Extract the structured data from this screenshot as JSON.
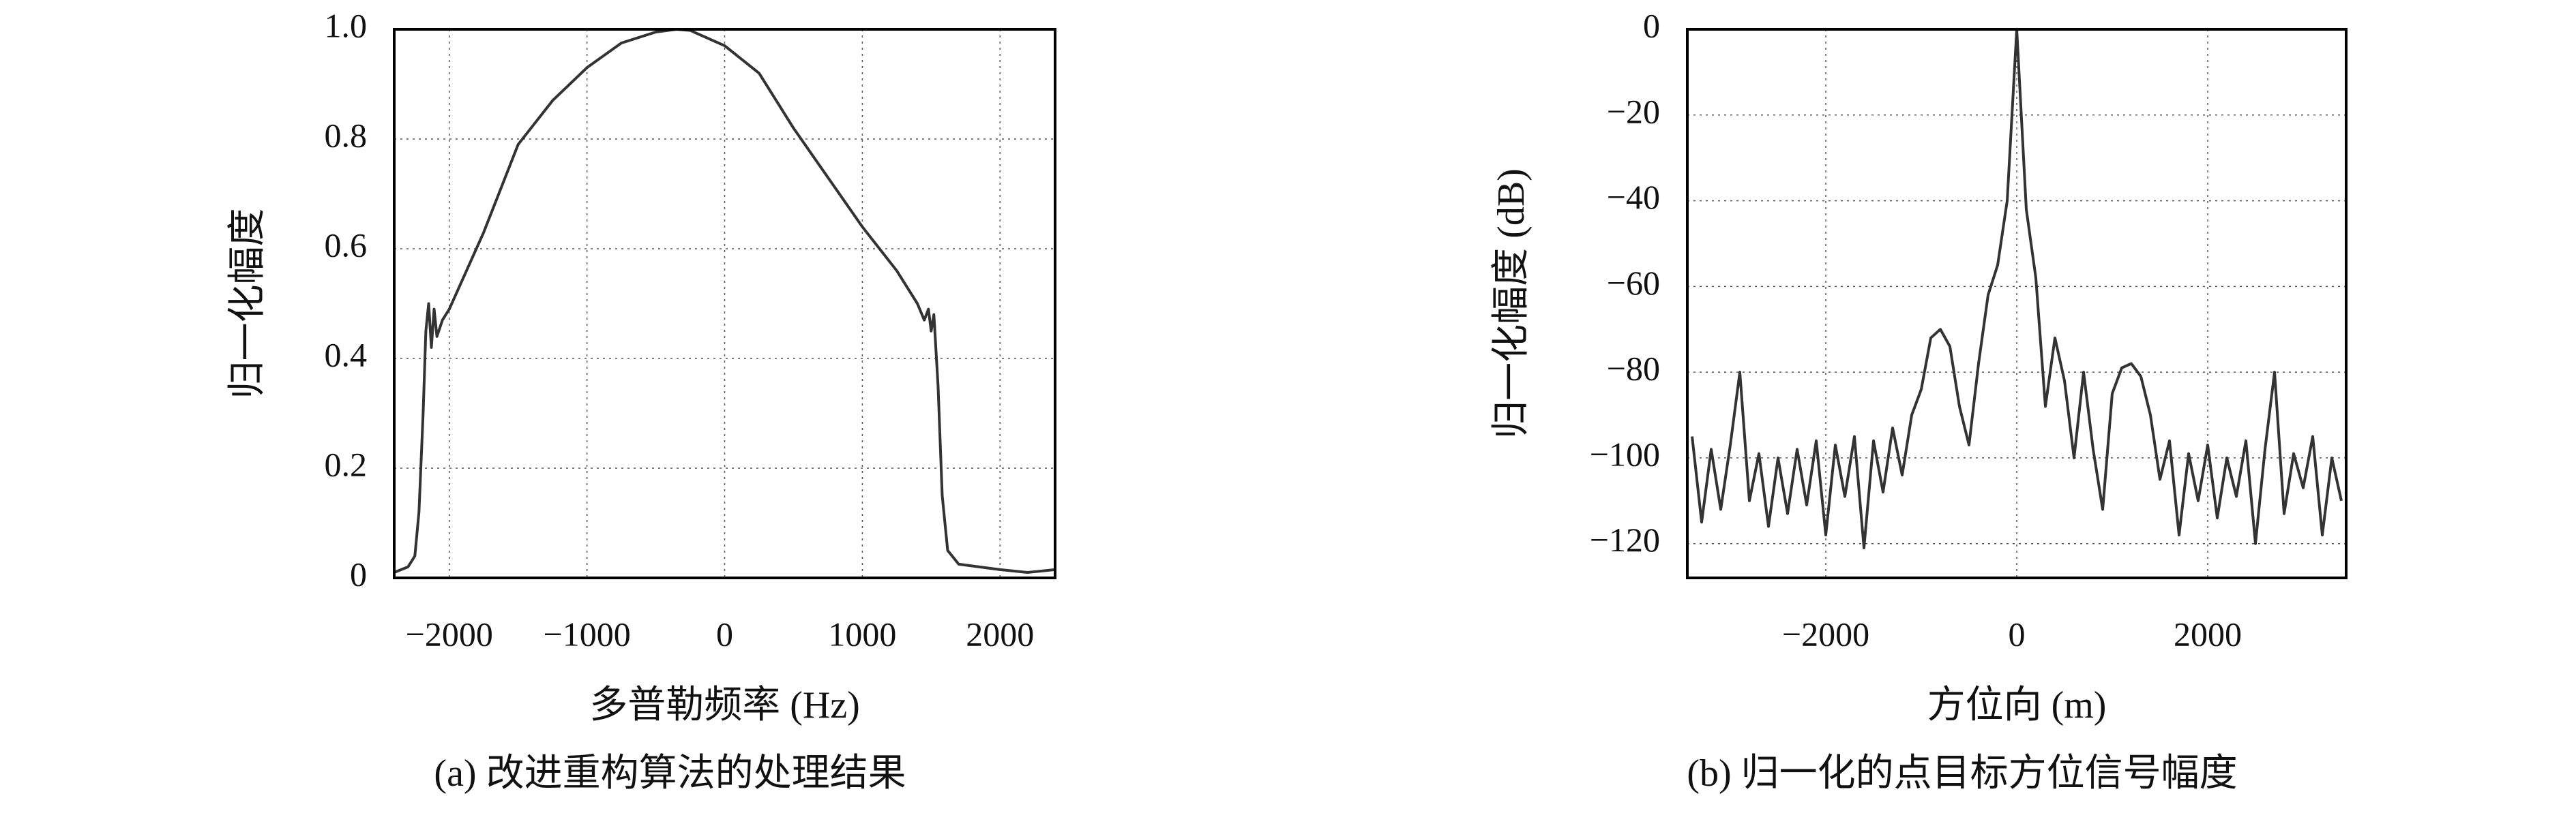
{
  "chart_data": [
    {
      "type": "line",
      "caption": "(a) 改进重构算法的处理结果",
      "x_label": "多普勒频率 (Hz)",
      "y_label": "归一化幅度",
      "x": [
        -2400,
        -2300,
        -2250,
        -2220,
        -2190,
        -2170,
        -2150,
        -2130,
        -2110,
        -2090,
        -2050,
        -2000,
        -1750,
        -1500,
        -1250,
        -1000,
        -750,
        -500,
        -350,
        -250,
        0,
        250,
        500,
        750,
        1000,
        1250,
        1400,
        1450,
        1480,
        1500,
        1520,
        1550,
        1580,
        1620,
        1700,
        2000,
        2200,
        2400
      ],
      "series": [
        {
          "color": "#333333",
          "values": [
            0.01,
            0.02,
            0.04,
            0.12,
            0.3,
            0.45,
            0.5,
            0.42,
            0.49,
            0.44,
            0.47,
            0.49,
            0.63,
            0.79,
            0.87,
            0.93,
            0.975,
            0.995,
            1.0,
            0.998,
            0.97,
            0.92,
            0.82,
            0.73,
            0.64,
            0.56,
            0.5,
            0.47,
            0.49,
            0.45,
            0.48,
            0.35,
            0.15,
            0.05,
            0.025,
            0.015,
            0.01,
            0.015
          ]
        }
      ],
      "xlim": [
        -2400,
        2400
      ],
      "ylim": [
        0,
        1
      ],
      "xticks": [
        {
          "value": -2000,
          "label": "−2000"
        },
        {
          "value": -1000,
          "label": "−1000"
        },
        0,
        1000,
        2000
      ],
      "yticks": [
        0,
        0.2,
        0.4,
        0.6,
        0.8,
        {
          "value": 1,
          "label": "1.0"
        }
      ],
      "grid": true
    },
    {
      "type": "line",
      "caption": "(b) 归一化的点目标方位信号幅度",
      "x_label": "方位向 (m)",
      "y_label": "归一化幅度 (dB)",
      "x": [
        -3400,
        -3300,
        -3200,
        -3100,
        -3000,
        -2900,
        -2800,
        -2700,
        -2600,
        -2500,
        -2400,
        -2300,
        -2200,
        -2100,
        -2000,
        -1900,
        -1800,
        -1700,
        -1600,
        -1500,
        -1400,
        -1300,
        -1200,
        -1100,
        -1000,
        -900,
        -800,
        -700,
        -600,
        -500,
        -400,
        -300,
        -200,
        -100,
        0,
        100,
        200,
        300,
        400,
        500,
        600,
        700,
        800,
        900,
        1000,
        1100,
        1200,
        1300,
        1400,
        1500,
        1600,
        1700,
        1800,
        1900,
        2000,
        2100,
        2200,
        2300,
        2400,
        2500,
        2600,
        2700,
        2800,
        2900,
        3000,
        3100,
        3200,
        3300,
        3400
      ],
      "series": [
        {
          "color": "#333333",
          "values": [
            -95,
            -115,
            -98,
            -112,
            -97,
            -80,
            -110,
            -99,
            -116,
            -100,
            -113,
            -98,
            -111,
            -96,
            -118,
            -97,
            -109,
            -95,
            -121,
            -96,
            -108,
            -93,
            -104,
            -90,
            -84,
            -72,
            -70,
            -74,
            -88,
            -97,
            -78,
            -62,
            -55,
            -40,
            0,
            -42,
            -58,
            -88,
            -72,
            -82,
            -100,
            -80,
            -98,
            -112,
            -85,
            -79,
            -78,
            -81,
            -90,
            -105,
            -96,
            -118,
            -99,
            -110,
            -97,
            -114,
            -100,
            -109,
            -96,
            -120,
            -98,
            -80,
            -113,
            -99,
            -107,
            -95,
            -118,
            -100,
            -110
          ]
        }
      ],
      "xlim": [
        -3450,
        3450
      ],
      "ylim": [
        -128,
        0
      ],
      "xticks": [
        {
          "value": -2000,
          "label": "−2000"
        },
        0,
        2000
      ],
      "yticks": [
        0,
        {
          "value": -20,
          "label": "−20"
        },
        {
          "value": -40,
          "label": "−40"
        },
        {
          "value": -60,
          "label": "−60"
        },
        {
          "value": -80,
          "label": "−80"
        },
        {
          "value": -100,
          "label": "−100"
        },
        {
          "value": -120,
          "label": "−120"
        }
      ],
      "grid": true
    }
  ]
}
